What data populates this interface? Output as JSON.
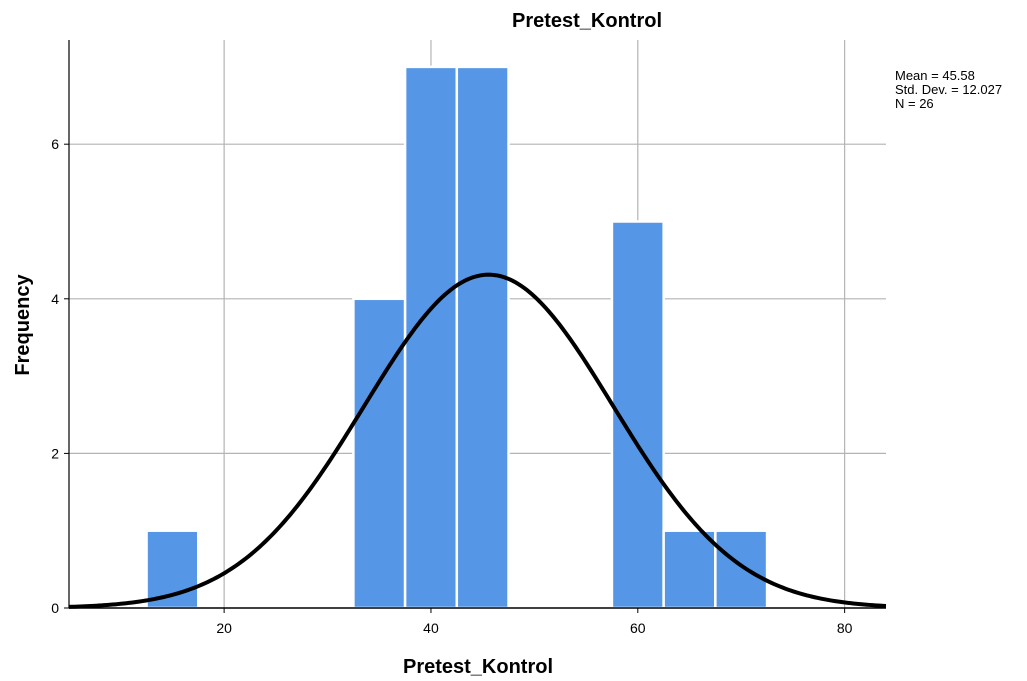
{
  "chart_data": {
    "type": "bar",
    "title": "Pretest_Kontrol",
    "xlabel": "Pretest_Kontrol",
    "ylabel": "Frequency",
    "xlim": [
      5,
      84
    ],
    "ylim": [
      0,
      7
    ],
    "xticks": [
      "20",
      "40",
      "60",
      "80"
    ],
    "yticks": [
      "0",
      "2",
      "4",
      "6"
    ],
    "bins": [
      {
        "from": 12.5,
        "to": 17.5,
        "count": 1
      },
      {
        "from": 32.5,
        "to": 37.5,
        "count": 4
      },
      {
        "from": 37.5,
        "to": 42.5,
        "count": 7
      },
      {
        "from": 42.5,
        "to": 47.5,
        "count": 7
      },
      {
        "from": 57.5,
        "to": 62.5,
        "count": 5
      },
      {
        "from": 62.5,
        "to": 67.5,
        "count": 1
      },
      {
        "from": 67.5,
        "to": 72.5,
        "count": 1
      }
    ],
    "normal_curve": {
      "mean": 45.58,
      "sd": 12.027,
      "n": 26,
      "bin_width": 5
    },
    "stats_text": [
      "Mean = 45.58",
      "Std. Dev. = 12.027",
      "N = 26"
    ],
    "bar_color": "#5596e6",
    "curve_color": "#000000",
    "grid": true
  }
}
